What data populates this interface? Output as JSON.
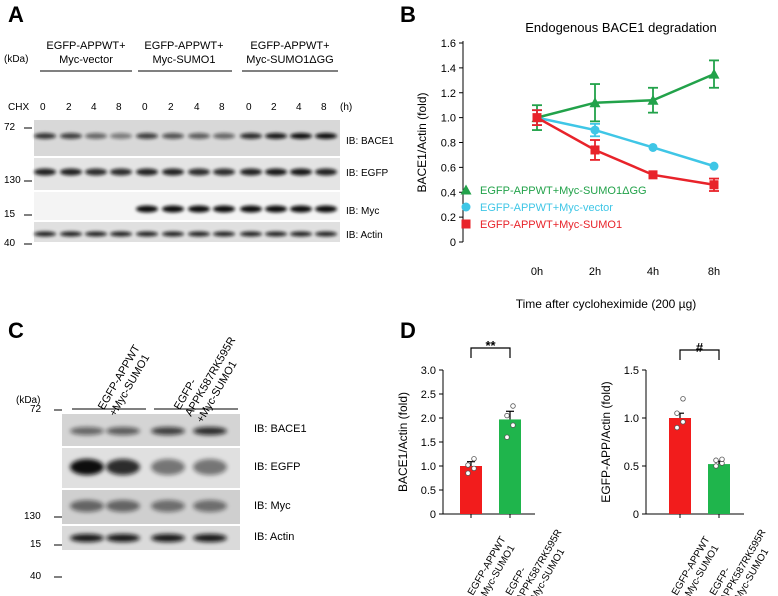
{
  "panels": {
    "A": {
      "letter": "A",
      "kda_label": "(kDa)",
      "cond_lines": [
        "EGFP-APPWT+",
        "Myc-vector",
        "EGFP-APPWT+",
        "Myc-SUMO1",
        "EGFP-APPWT+",
        "Myc-SUMO1ΔGG"
      ],
      "chx_label": "CHX",
      "time_labels": [
        "0",
        "2",
        "4",
        "8",
        "0",
        "2",
        "4",
        "8",
        "0",
        "2",
        "4",
        "8"
      ],
      "hours_unit": "(h)",
      "markers": [
        "72",
        "130",
        "15",
        "40"
      ],
      "blot_labels": [
        "IB: BACE1",
        "IB: EGFP",
        "IB: Myc",
        "IB: Actin"
      ]
    },
    "B": {
      "letter": "B"
    },
    "C": {
      "letter": "C",
      "kda_label": "(kDa)",
      "cond1": [
        "EGFP-APPWT",
        "+Myc-SUMO1"
      ],
      "cond2": [
        "EGFP-",
        "APPK587RK595R",
        "+Myc-SUMO1"
      ],
      "markers": [
        "72",
        "130",
        "15",
        "40"
      ],
      "blot_labels": [
        "IB: BACE1",
        "IB: EGFP",
        "IB: Myc",
        "IB: Actin"
      ]
    },
    "D": {
      "letter": "D",
      "xcat1": [
        "EGFP-APPWT",
        "+Myc-SUMO1"
      ],
      "xcat2": [
        "EGFP-",
        "APPK587RK595R",
        "+ Myc-SUMO1"
      ]
    }
  },
  "chart_data": [
    {
      "type": "line",
      "title": "Endogenous BACE1 degradation",
      "xlabel": "Time after cycloheximide (200 µg)",
      "ylabel": "BACE1/Actin (fold)",
      "categories": [
        "0h",
        "2h",
        "4h",
        "8h"
      ],
      "ylim": [
        0,
        1.6
      ],
      "yticks": [
        "0",
        "0.2",
        "0.4",
        "0.6",
        "0.8",
        "1.0",
        "1.2",
        "1.4",
        "1.6"
      ],
      "legend_position": "bottom-left",
      "series": [
        {
          "name": "EGFP-APPWT+Myc-SUMO1ΔGG",
          "color": "#22a24a",
          "marker": "triangle",
          "values": [
            1.0,
            1.12,
            1.14,
            1.35
          ],
          "errors": [
            0.1,
            0.15,
            0.1,
            0.11
          ]
        },
        {
          "name": "EGFP-APPWT+Myc-vector",
          "color": "#3fc6e6",
          "marker": "circle",
          "values": [
            1.0,
            0.9,
            0.76,
            0.61
          ],
          "errors": [
            0.06,
            0.05,
            0.0,
            0.0
          ]
        },
        {
          "name": "EGFP-APPWT+Myc-SUMO1",
          "color": "#e8232a",
          "marker": "square",
          "values": [
            1.0,
            0.74,
            0.54,
            0.46
          ],
          "errors": [
            0.06,
            0.08,
            0.0,
            0.05
          ]
        }
      ]
    },
    {
      "type": "bar",
      "ylabel": "BACE1/Actin (fold)",
      "categories": [
        "EGFP-APPWT +Myc-SUMO1",
        "EGFP- APPK587RK595R + Myc-SUMO1"
      ],
      "values": [
        1.0,
        1.97
      ],
      "errors": [
        0.09,
        0.17
      ],
      "colors": [
        "#f21c1c",
        "#1fb54c"
      ],
      "ylim": [
        0,
        3.0
      ],
      "yticks": [
        "0",
        "0.5",
        "1.0",
        "1.5",
        "2.0",
        "2.5",
        "3.0"
      ],
      "significance": "**",
      "points": [
        [
          0.85,
          0.95,
          1.02,
          1.15
        ],
        [
          1.6,
          1.85,
          2.05,
          2.25
        ]
      ]
    },
    {
      "type": "bar",
      "ylabel": "EGFP-APP/Actin (fold)",
      "categories": [
        "EGFP-APPWT +Myc-SUMO1",
        "EGFP- APPK587RK595R + Myc-SUMO1"
      ],
      "values": [
        1.0,
        0.52
      ],
      "errors": [
        0.05,
        0.03
      ],
      "colors": [
        "#f21c1c",
        "#1fb54c"
      ],
      "ylim": [
        0,
        1.5
      ],
      "yticks": [
        "0",
        "0.5",
        "1.0",
        "1.5"
      ],
      "significance": "#",
      "points": [
        [
          0.9,
          0.96,
          1.05,
          1.2
        ],
        [
          0.5,
          0.53,
          0.56,
          0.57
        ]
      ]
    }
  ]
}
